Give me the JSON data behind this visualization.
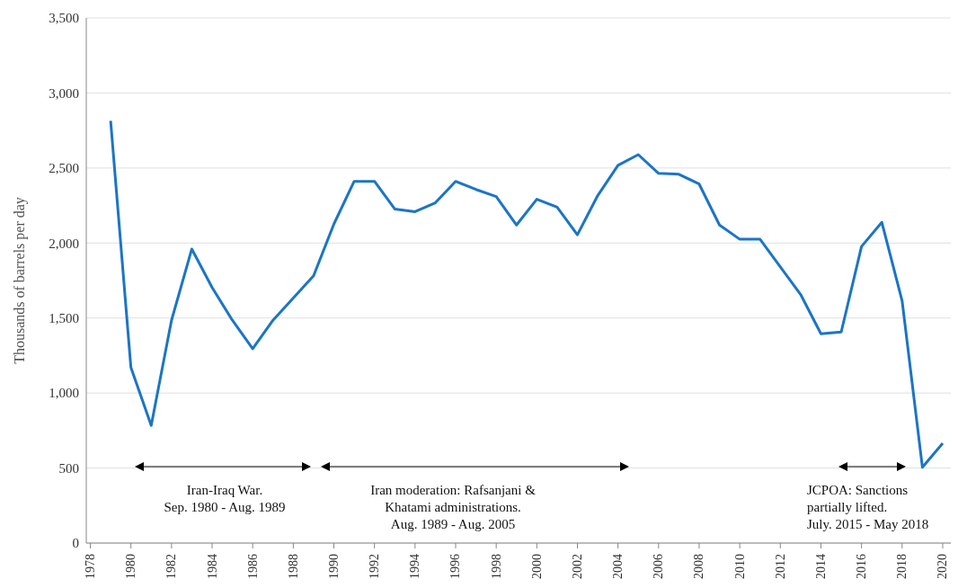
{
  "chart_data": {
    "type": "line",
    "ylabel": "Thousands of barrels per day",
    "x": [
      1979,
      1980,
      1981,
      1982,
      1983,
      1984,
      1985,
      1986,
      1987,
      1988,
      1989,
      1990,
      1991,
      1992,
      1993,
      1994,
      1995,
      1996,
      1997,
      1998,
      1999,
      2000,
      2001,
      2002,
      2003,
      2004,
      2005,
      2006,
      2007,
      2008,
      2009,
      2010,
      2011,
      2012,
      2013,
      2014,
      2015,
      2016,
      2017,
      2018,
      2019,
      2020
    ],
    "series": [
      {
        "color": "#1b75c6",
        "values": [
          2815,
          1170,
          784,
          1485,
          1960,
          1704,
          1485,
          1295,
          1485,
          1633,
          1781,
          2126,
          2411,
          2411,
          2227,
          2209,
          2268,
          2411,
          2357,
          2310,
          2120,
          2292,
          2239,
          2055,
          2316,
          2518,
          2589,
          2464,
          2458,
          2393,
          2120,
          2025,
          2025,
          1841,
          1657,
          1395,
          1407,
          1977,
          2138,
          1615,
          505,
          665
        ]
      }
    ],
    "xlim": [
      1977.8,
      2020.4
    ],
    "xticks": [
      1978,
      1980,
      1982,
      1984,
      1986,
      1988,
      1990,
      1992,
      1994,
      1996,
      1998,
      2000,
      2002,
      2004,
      2006,
      2008,
      2010,
      2012,
      2014,
      2016,
      2018,
      2020
    ],
    "ylim": [
      0,
      3500
    ],
    "yticks": [
      0,
      500,
      {
        "value": 1000,
        "label": "1,000"
      },
      {
        "value": 1500,
        "label": "1,500"
      },
      {
        "value": 2000,
        "label": "2,000"
      },
      {
        "value": 2500,
        "label": "2,500"
      },
      {
        "value": 3000,
        "label": "3,000"
      },
      {
        "value": 3500,
        "label": "3,500"
      }
    ],
    "grid": "y",
    "marker": "none",
    "line_style": "solid",
    "annotations": [
      "Iran-Iraq War.\nSep. 1980 - Aug. 1989",
      "Iran moderation: Rafsanjani &\nKhatami administrations.\nAug. 1989 - Aug. 2005",
      "JCPOA: Sanctions\npartially lifted.\nJuly. 2015 - May 2018"
    ]
  }
}
